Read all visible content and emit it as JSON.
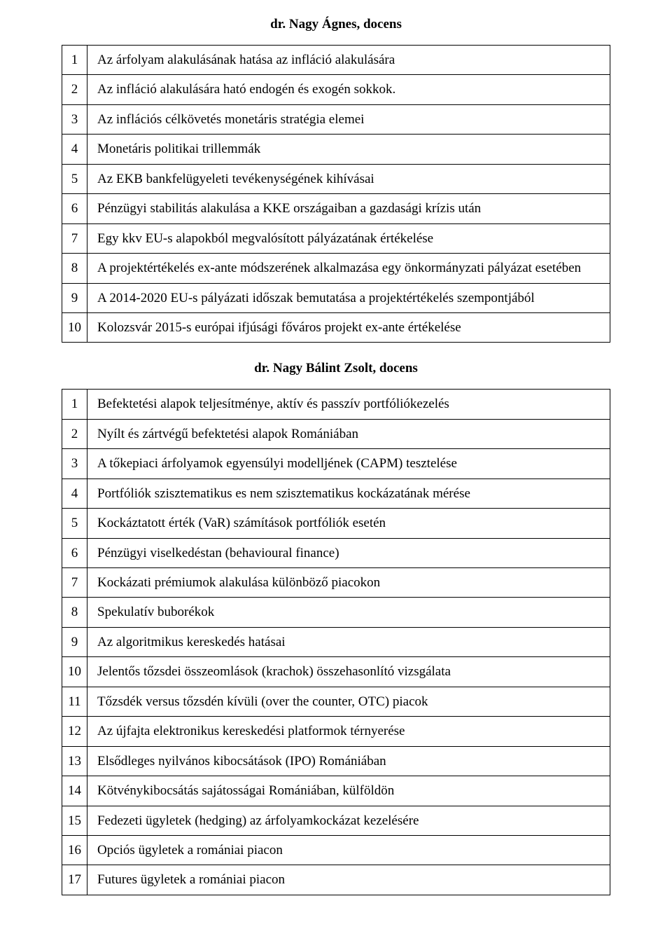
{
  "sections": [
    {
      "title": "dr. Nagy Ágnes, docens",
      "rows": [
        {
          "n": "1",
          "text": "Az árfolyam alakulásának hatása az infláció alakulására"
        },
        {
          "n": "2",
          "text": "  Az infláció alakulására ható endogén és exogén sokkok."
        },
        {
          "n": "3",
          "text": "Az inflációs célkövetés monetáris stratégia elemei"
        },
        {
          "n": "4",
          "text": "Monetáris politikai trillemmák"
        },
        {
          "n": "5",
          "text": "  Az EKB bankfelügyeleti tevékenységének kihívásai"
        },
        {
          "n": "6",
          "text": "Pénzügyi stabilitás alakulása a KKE országaiban a gazdasági krízis után"
        },
        {
          "n": "7",
          "text": "Egy kkv EU-s alapokból megvalósított pályázatának értékelése"
        },
        {
          "n": "8",
          "text": "A projektértékelés ex-ante módszerének alkalmazása egy önkormányzati pályázat esetében",
          "multiline": true
        },
        {
          "n": "9",
          "text": "  A 2014-2020 EU-s pályázati időszak bemutatása a projektértékelés szempontjából"
        },
        {
          "n": "10",
          "text": "  Kolozsvár 2015-s európai ifjúsági főváros projekt ex-ante értékelése"
        }
      ]
    },
    {
      "title": "dr. Nagy Bálint Zsolt, docens",
      "rows": [
        {
          "n": "1",
          "text": "Befektetési alapok teljesítménye, aktív és passzív portfóliókezelés"
        },
        {
          "n": "2",
          "text": "Nyílt és zártvégű befektetési alapok Romániában"
        },
        {
          "n": "3",
          "text": "A tőkepiaci árfolyamok egyensúlyi modelljének (CAPM) tesztelése"
        },
        {
          "n": "4",
          "text": "Portfóliók szisztematikus es nem szisztematikus kockázatának mérése"
        },
        {
          "n": "5",
          "text": "Kockáztatott érték (VaR) számítások portfóliók esetén"
        },
        {
          "n": "6",
          "text": "Pénzügyi viselkedéstan (behavioural finance)"
        },
        {
          "n": "7",
          "text": "Kockázati prémiumok alakulása különböző piacokon"
        },
        {
          "n": "8",
          "text": "Spekulatív buborékok"
        },
        {
          "n": "9",
          "text": "Az algoritmikus kereskedés hatásai"
        },
        {
          "n": "10",
          "text": "Jelentős tőzsdei összeomlások (krachok) összehasonlító vizsgálata"
        },
        {
          "n": "11",
          "text": "Tőzsdék versus tőzsdén kívüli (over the counter, OTC) piacok"
        },
        {
          "n": "12",
          "text": "Az újfajta elektronikus kereskedési platformok térnyerése"
        },
        {
          "n": "13",
          "text": "Elsődleges nyilvános kibocsátások (IPO) Romániában"
        },
        {
          "n": "14",
          "text": "Kötvénykibocsátás sajátosságai Romániában, külföldön"
        },
        {
          "n": "15",
          "text": "Fedezeti ügyletek (hedging) az árfolyamkockázat kezelésére"
        },
        {
          "n": "16",
          "text": "Opciós ügyletek a romániai piacon"
        },
        {
          "n": "17",
          "text": "Futures ügyletek a romániai piacon"
        }
      ]
    }
  ]
}
